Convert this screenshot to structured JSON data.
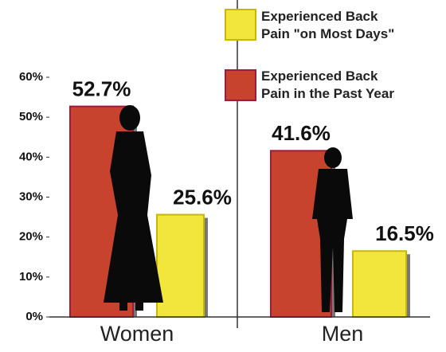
{
  "chart_data": {
    "type": "bar",
    "categories": [
      "Women",
      "Men"
    ],
    "series": [
      {
        "name": "Experienced Back Pain in the Past Year",
        "color": "#c8432d",
        "values": [
          52.7,
          41.6
        ],
        "value_labels": [
          "52.7%",
          "41.6%"
        ]
      },
      {
        "name": "Experienced Back Pain \"on Most Days\"",
        "color": "#f2e63c",
        "values": [
          25.6,
          16.5
        ],
        "value_labels": [
          "25.6%",
          "16.5%"
        ]
      }
    ],
    "ylim": [
      0,
      60
    ],
    "yticks": [
      {
        "value": 0,
        "label": "0%"
      },
      {
        "value": 10,
        "label": "10%"
      },
      {
        "value": 20,
        "label": "20%"
      },
      {
        "value": 30,
        "label": "30%"
      },
      {
        "value": 40,
        "label": "40%"
      },
      {
        "value": 50,
        "label": "50%"
      },
      {
        "value": 60,
        "label": "60%"
      }
    ]
  }
}
